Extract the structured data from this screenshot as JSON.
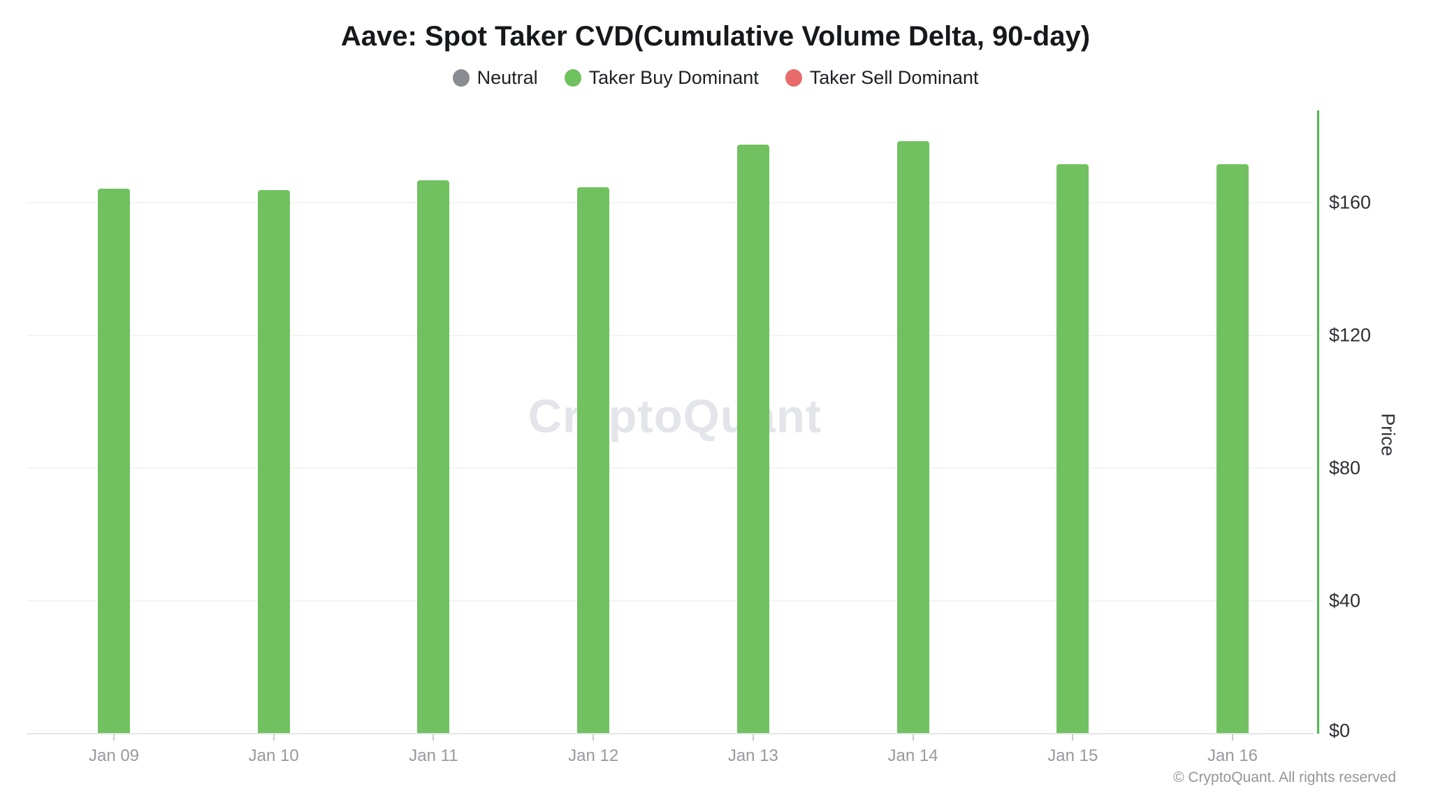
{
  "page": {
    "watermark": "CryptoQuant",
    "footer": "© CryptoQuant. All rights reserved"
  },
  "chart_data": {
    "type": "bar",
    "title": "Aave: Spot Taker CVD(Cumulative Volume Delta, 90-day)",
    "categories": [
      "Jan 09",
      "Jan 10",
      "Jan 11",
      "Jan 12",
      "Jan 13",
      "Jan 14",
      "Jan 15",
      "Jan 16"
    ],
    "series": [
      {
        "name": "Price",
        "values": [
          164.2,
          163.8,
          166.7,
          164.6,
          177.5,
          178.5,
          171.6,
          171.6
        ],
        "status_per_bar": [
          "Taker Buy Dominant",
          "Taker Buy Dominant",
          "Taker Buy Dominant",
          "Taker Buy Dominant",
          "Taker Buy Dominant",
          "Taker Buy Dominant",
          "Taker Buy Dominant",
          "Taker Buy Dominant"
        ]
      }
    ],
    "xlabel": "",
    "ylabel": "Price",
    "ylim": [
      0,
      187
    ],
    "yticks": [
      {
        "value": 0,
        "label": "$0"
      },
      {
        "value": 40,
        "label": "$40"
      },
      {
        "value": 80,
        "label": "$80"
      },
      {
        "value": 120,
        "label": "$120"
      },
      {
        "value": 160,
        "label": "$160"
      }
    ],
    "grid": "horizontal",
    "legend_position": "top",
    "legend": {
      "items": [
        {
          "label": "Neutral",
          "color": "#8b8b92"
        },
        {
          "label": "Taker Buy Dominant",
          "color": "#6fc05f"
        },
        {
          "label": "Taker Sell Dominant",
          "color": "#e76b6b"
        }
      ]
    },
    "colors": {
      "bar": "#71c160",
      "axis_line": "#4fb94f",
      "gridline": "#f4f4f6",
      "baseline": "#e4e4e9",
      "title_text": "#17181c",
      "ytick_text": "#2f3036",
      "xtick_text": "#98989f",
      "watermark": "#e3e5ea",
      "footer_text": "#94949c"
    }
  }
}
